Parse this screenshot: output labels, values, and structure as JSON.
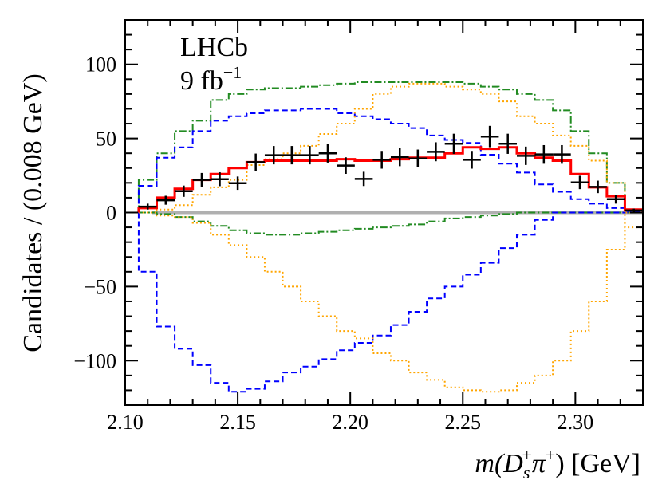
{
  "chart_data": {
    "type": "line",
    "title": "",
    "annotations": {
      "experiment": "LHCb",
      "lumi": "9 fb",
      "lumi_exp": "−1"
    },
    "xlabel_parts": {
      "m": "m",
      "open": "(D",
      "sub": "s",
      "sup1": "+",
      "pi": "π",
      "sup2": "+",
      "close": ") [GeV]"
    },
    "ylabel": "Candidates / (0.008 GeV)",
    "xlim": [
      2.1,
      2.33
    ],
    "ylim": [
      -130,
      130
    ],
    "xticks": [
      2.1,
      2.15,
      2.2,
      2.25,
      2.3
    ],
    "xtick_labels": [
      "2.10",
      "2.15",
      "2.20",
      "2.25",
      "2.30"
    ],
    "yticks": [
      -100,
      -50,
      0,
      50,
      100
    ],
    "ytick_labels": [
      "−100",
      "−50",
      "0",
      "50",
      "100"
    ],
    "bin_start": 2.106,
    "bin_width": 0.008,
    "data_points": [
      4,
      8.3,
      14.4,
      22,
      22.5,
      19.8,
      34,
      38.7,
      38.7,
      38.7,
      40,
      31.7,
      22.7,
      35.6,
      37.4,
      36.5,
      41,
      46.4,
      35.6,
      51.3,
      46.4,
      38.3,
      39.2,
      39.2,
      20.3,
      17.3,
      9,
      1.4
    ],
    "data_errors": [
      2,
      3,
      3.8,
      4.7,
      4.7,
      4.5,
      5.8,
      6.2,
      6.2,
      6.2,
      6.3,
      5.6,
      4.8,
      6,
      6.1,
      6,
      6.4,
      6.8,
      6,
      7.2,
      6.8,
      6.2,
      6.3,
      6.3,
      4.5,
      4.2,
      3,
      1.2
    ],
    "series": [
      {
        "name": "green-pos",
        "color": "#228b22",
        "style": "dashdot",
        "values": [
          22,
          40,
          55,
          62,
          76,
          80,
          83,
          84,
          84,
          85,
          86,
          87,
          88,
          88,
          88,
          88,
          88,
          88,
          87,
          85,
          83,
          80,
          76,
          69,
          55,
          40,
          20,
          2
        ]
      },
      {
        "name": "green-neg",
        "color": "#228b22",
        "style": "dashdot",
        "values": [
          0,
          -1,
          -3,
          -6,
          -9,
          -12,
          -14,
          -15,
          -15,
          -14,
          -13,
          -12,
          -11,
          -10,
          -9,
          -8,
          -6,
          -4,
          -3,
          -2,
          -1,
          0,
          0,
          0,
          0,
          0,
          0,
          0
        ]
      },
      {
        "name": "blue-pos",
        "color": "#0000ff",
        "style": "dashed",
        "values": [
          18,
          37,
          44,
          55,
          62,
          65,
          67,
          69,
          69,
          70,
          70,
          67,
          65,
          63,
          60,
          57,
          52,
          49,
          47,
          39,
          33,
          27,
          19,
          14,
          9,
          6,
          3,
          1
        ]
      },
      {
        "name": "blue-neg",
        "color": "#0000ff",
        "style": "dashed",
        "values": [
          -40,
          -77,
          -92,
          -103,
          -115,
          -121,
          -119,
          -114,
          -108,
          -104,
          -99,
          -93,
          -88,
          -83,
          -76,
          -67,
          -58,
          -50,
          -42,
          -34,
          -24,
          -15,
          -5,
          0,
          0,
          0,
          0,
          0
        ]
      },
      {
        "name": "orange-pos",
        "color": "#ffa500",
        "style": "dotted",
        "values": [
          0,
          2,
          5,
          12,
          17,
          22,
          32,
          36,
          40,
          45,
          53,
          60,
          70,
          80,
          85,
          87,
          87,
          85,
          83,
          80,
          75,
          65,
          60,
          52,
          45,
          35,
          20,
          -10
        ]
      },
      {
        "name": "orange-neg",
        "color": "#ffa500",
        "style": "dotted",
        "values": [
          0,
          -2,
          -3,
          -7,
          -15,
          -22,
          -30,
          -40,
          -50,
          -60,
          -70,
          -80,
          -85,
          -95,
          -100,
          -108,
          -113,
          -118,
          -120,
          -121,
          -120,
          -115,
          -110,
          -100,
          -80,
          -60,
          -25,
          0
        ]
      },
      {
        "name": "fit-total",
        "color": "#ff0000",
        "style": "solid",
        "values": [
          3,
          10,
          16,
          22,
          26,
          30,
          34,
          35,
          35,
          35,
          35,
          36,
          35,
          35,
          36,
          37,
          37,
          40,
          44,
          43,
          44,
          40,
          37,
          35,
          26,
          17,
          11,
          2
        ]
      }
    ],
    "baseline_color": "#b0b0b0"
  }
}
